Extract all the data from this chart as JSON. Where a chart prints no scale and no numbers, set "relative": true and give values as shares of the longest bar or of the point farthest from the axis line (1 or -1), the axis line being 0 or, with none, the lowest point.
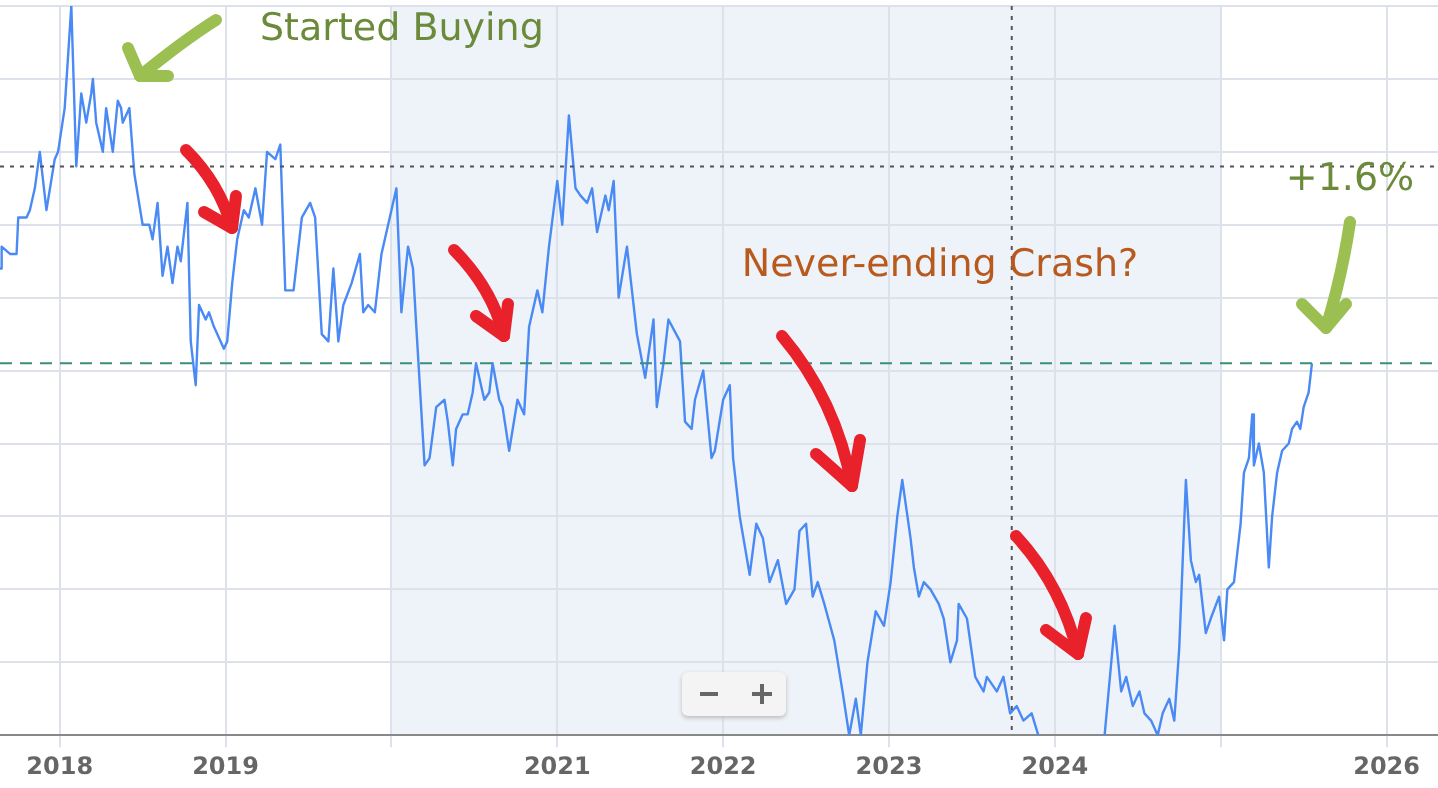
{
  "chart_data": {
    "type": "line",
    "relative": true,
    "legend": false,
    "grid": true,
    "xlim": [
      2017.64,
      2026.31
    ],
    "xticks": [
      2018,
      2019,
      {
        "value": 2020,
        "label": null
      },
      2021,
      2022,
      2023,
      2024,
      {
        "value": 2025,
        "label": null
      },
      2026
    ],
    "x": [
      2017.64,
      2017.65,
      2017.7,
      2017.74,
      2017.75,
      2017.8,
      2017.82,
      2017.85,
      2017.88,
      2017.92,
      2017.97,
      2017.99,
      2018.03,
      2018.07,
      2018.1,
      2018.13,
      2018.16,
      2018.19,
      2018.2,
      2018.22,
      2018.26,
      2018.28,
      2018.32,
      2018.35,
      2018.37,
      2018.38,
      2018.42,
      2018.45,
      2018.5,
      2018.54,
      2018.56,
      2018.59,
      2018.62,
      2018.65,
      2018.68,
      2018.71,
      2018.73,
      2018.77,
      2018.79,
      2018.82,
      2018.84,
      2018.88,
      2018.9,
      2018.93,
      2018.99,
      2019.01,
      2019.04,
      2019.07,
      2019.11,
      2019.14,
      2019.18,
      2019.22,
      2019.25,
      2019.3,
      2019.33,
      2019.36,
      2019.41,
      2019.46,
      2019.51,
      2019.54,
      2019.58,
      2019.62,
      2019.65,
      2019.68,
      2019.71,
      2019.76,
      2019.81,
      2019.83,
      2019.86,
      2019.9,
      2019.94,
      2020.0,
      2020.03,
      2020.06,
      2020.1,
      2020.13,
      2020.15,
      2020.2,
      2020.23,
      2020.27,
      2020.32,
      2020.34,
      2020.37,
      2020.39,
      2020.43,
      2020.46,
      2020.49,
      2020.51,
      2020.56,
      2020.59,
      2020.61,
      2020.65,
      2020.67,
      2020.71,
      2020.76,
      2020.8,
      2020.83,
      2020.88,
      2020.91,
      2020.95,
      2021.0,
      2021.03,
      2021.07,
      2021.11,
      2021.14,
      2021.18,
      2021.21,
      2021.24,
      2021.29,
      2021.31,
      2021.34,
      2021.37,
      2021.42,
      2021.48,
      2021.53,
      2021.58,
      2021.6,
      2021.64,
      2021.67,
      2021.74,
      2021.77,
      2021.81,
      2021.83,
      2021.88,
      2021.93,
      2021.95,
      2022.0,
      2022.04,
      2022.06,
      2022.1,
      2022.16,
      2022.2,
      2022.24,
      2022.28,
      2022.33,
      2022.38,
      2022.43,
      2022.46,
      2022.5,
      2022.54,
      2022.57,
      2022.61,
      2022.67,
      2022.72,
      2022.76,
      2022.8,
      2022.83,
      2022.87,
      2022.92,
      2022.97,
      2023.01,
      2023.05,
      2023.08,
      2023.13,
      2023.15,
      2023.18,
      2023.21,
      2023.25,
      2023.3,
      2023.33,
      2023.37,
      2023.41,
      2023.42,
      2023.47,
      2023.52,
      2023.57,
      2023.59,
      2023.65,
      2023.69,
      2023.73,
      2023.77,
      2023.81,
      2023.86,
      2023.9,
      2024.1,
      2024.3,
      2024.34,
      2024.36,
      2024.4,
      2024.43,
      2024.47,
      2024.51,
      2024.54,
      2024.58,
      2024.62,
      2024.65,
      2024.69,
      2024.72,
      2024.75,
      2024.79,
      2024.82,
      2024.85,
      2024.87,
      2024.91,
      2024.94,
      2024.99,
      2025.02,
      2025.04,
      2025.08,
      2025.12,
      2025.14,
      2025.17,
      2025.19,
      2025.2,
      2025.23,
      2025.26,
      2025.29,
      2025.31,
      2025.34,
      2025.37,
      2025.41,
      2025.43,
      2025.46,
      2025.48,
      2025.5,
      2025.53,
      2025.55
    ],
    "series": [
      {
        "color": "#4a8af4",
        "values": [
          0.64,
          0.67,
          0.66,
          0.66,
          0.71,
          0.71,
          0.72,
          0.75,
          0.8,
          0.72,
          0.79,
          0.8,
          0.86,
          1.0,
          0.78,
          0.88,
          0.84,
          0.88,
          0.9,
          0.84,
          0.8,
          0.86,
          0.8,
          0.87,
          0.86,
          0.84,
          0.86,
          0.77,
          0.7,
          0.7,
          0.68,
          0.73,
          0.63,
          0.67,
          0.62,
          0.67,
          0.65,
          0.73,
          0.54,
          0.48,
          0.59,
          0.57,
          0.58,
          0.56,
          0.53,
          0.54,
          0.62,
          0.68,
          0.72,
          0.71,
          0.75,
          0.7,
          0.8,
          0.79,
          0.81,
          0.61,
          0.61,
          0.71,
          0.73,
          0.71,
          0.55,
          0.54,
          0.64,
          0.54,
          0.59,
          0.62,
          0.66,
          0.58,
          0.59,
          0.58,
          0.66,
          0.72,
          0.75,
          0.58,
          0.67,
          0.64,
          0.56,
          0.37,
          0.38,
          0.45,
          0.46,
          0.43,
          0.37,
          0.42,
          0.44,
          0.44,
          0.47,
          0.51,
          0.46,
          0.47,
          0.51,
          0.46,
          0.45,
          0.39,
          0.46,
          0.44,
          0.56,
          0.61,
          0.58,
          0.67,
          0.76,
          0.7,
          0.85,
          0.75,
          0.74,
          0.73,
          0.75,
          0.69,
          0.74,
          0.72,
          0.76,
          0.6,
          0.67,
          0.55,
          0.49,
          0.57,
          0.45,
          0.51,
          0.57,
          0.54,
          0.43,
          0.42,
          0.46,
          0.5,
          0.38,
          0.39,
          0.46,
          0.48,
          0.38,
          0.3,
          0.22,
          0.29,
          0.27,
          0.21,
          0.24,
          0.18,
          0.2,
          0.28,
          0.29,
          0.19,
          0.21,
          0.18,
          0.13,
          0.06,
          0,
          0.05,
          0,
          0.1,
          0.17,
          0.15,
          0.21,
          0.3,
          0.35,
          0.27,
          0.23,
          0.19,
          0.21,
          0.2,
          0.18,
          0.16,
          0.1,
          0.13,
          0.18,
          0.16,
          0.08,
          0.06,
          0.08,
          0.06,
          0.08,
          0.03,
          0.04,
          0.02,
          0.03,
          0,
          null,
          0,
          0.1,
          0.15,
          0.06,
          0.08,
          0.04,
          0.06,
          0.03,
          0.02,
          0,
          0.03,
          0.05,
          0.02,
          0.12,
          0.35,
          0.24,
          0.21,
          0.22,
          0.14,
          0.16,
          0.19,
          0.13,
          0.2,
          0.21,
          0.29,
          0.36,
          0.38,
          0.44,
          0.37,
          0.4,
          0.36,
          0.23,
          0.3,
          0.36,
          0.39,
          0.4,
          0.42,
          0.43,
          0.42,
          0.45,
          0.47,
          0.51
        ]
      }
    ],
    "ref_lines": [
      {
        "axis": "y",
        "value": 0.78,
        "color": "#555555",
        "line_style": "dotted"
      },
      {
        "axis": "y",
        "value": 0.51,
        "color": "#3a8f7a",
        "line_style": "dashed"
      },
      {
        "axis": "x",
        "value": 2023.74,
        "color": "#555555",
        "line_style": "dotted"
      }
    ],
    "bands": [
      {
        "axis": "x",
        "from": 2020,
        "to": 2025,
        "color": "#eef3f9"
      }
    ],
    "annotations": [
      "Started Buying",
      "Never-ending Crash?",
      "+1.6%"
    ]
  }
}
